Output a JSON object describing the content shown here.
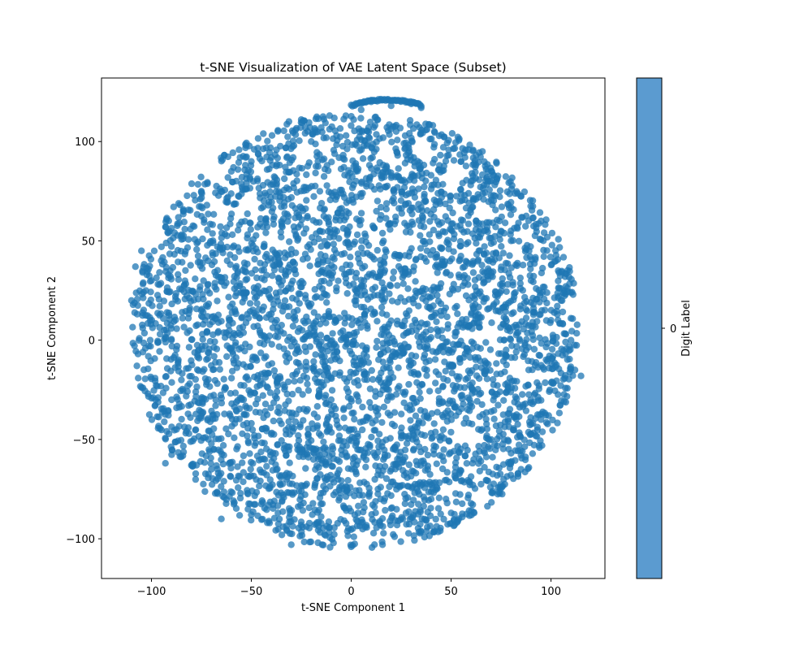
{
  "chart_data": {
    "type": "scatter",
    "title": "t-SNE Visualization of VAE Latent Space (Subset)",
    "xlabel": "t-SNE Component 1",
    "ylabel": "t-SNE Component 2",
    "xlim": [
      -125,
      127
    ],
    "ylim": [
      -120,
      132
    ],
    "xticks": [
      -100,
      -50,
      0,
      50,
      100
    ],
    "xtick_labels": [
      "−100",
      "−50",
      "0",
      "50",
      "100"
    ],
    "yticks": [
      -100,
      -50,
      0,
      50,
      100
    ],
    "ytick_labels": [
      "−100",
      "−50",
      "0",
      "50",
      "100"
    ],
    "grid": false,
    "marker_color": "#1f77b4",
    "marker_alpha": 0.75,
    "colorbar": {
      "label": "Digit Label",
      "ticks": [
        "0"
      ],
      "color": "#5b9bd0"
    },
    "cluster_summary": {
      "shape": "approximately circular cloud",
      "center": [
        2,
        5
      ],
      "radius_x": 112,
      "radius_y": 110,
      "arc_segment": {
        "x_range": [
          0,
          35
        ],
        "y_range": [
          117,
          121
        ]
      }
    },
    "series": [
      {
        "values_sample": [
          [
            -110,
            20
          ],
          [
            -108,
            37
          ],
          [
            -105,
            45
          ],
          [
            -100,
            30
          ],
          [
            -95,
            47
          ],
          [
            -93,
            -62
          ],
          [
            -90,
            0
          ],
          [
            -85,
            -20
          ],
          [
            -80,
            -63
          ],
          [
            -75,
            75
          ],
          [
            -70,
            -65
          ],
          [
            -65,
            -90
          ],
          [
            -60,
            85
          ],
          [
            -50,
            90
          ],
          [
            -45,
            -60
          ],
          [
            -40,
            92
          ],
          [
            -30,
            -103
          ],
          [
            -20,
            100
          ],
          [
            -15,
            107
          ],
          [
            -10,
            -30
          ],
          [
            0,
            -104
          ],
          [
            5,
            116
          ],
          [
            10,
            120
          ],
          [
            20,
            118
          ],
          [
            30,
            119
          ],
          [
            35,
            117
          ],
          [
            40,
            -80
          ],
          [
            50,
            -87
          ],
          [
            55,
            90
          ],
          [
            60,
            80
          ],
          [
            70,
            -50
          ],
          [
            80,
            50
          ],
          [
            85,
            -65
          ],
          [
            90,
            30
          ],
          [
            95,
            -40
          ],
          [
            100,
            10
          ],
          [
            105,
            20
          ],
          [
            110,
            0
          ],
          [
            112,
            -15
          ],
          [
            115,
            -18
          ]
        ]
      }
    ]
  }
}
